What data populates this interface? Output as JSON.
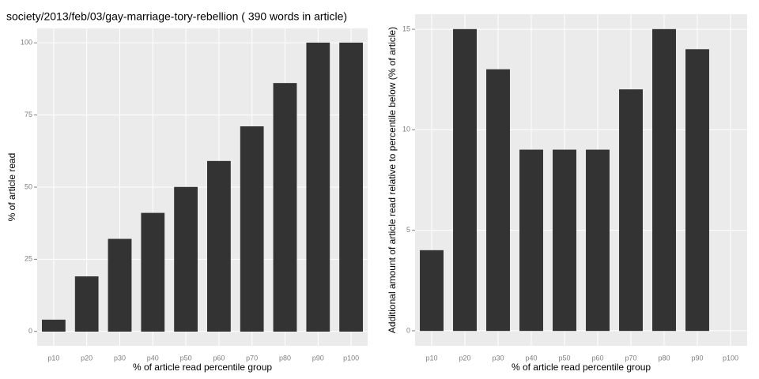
{
  "chart_data": [
    {
      "type": "bar",
      "title": "society/2013/feb/03/gay-marriage-tory-rebellion ( 390 words in article)",
      "x_label": "% of article read percentile group",
      "y_label": "% of article read",
      "categories": [
        "p10",
        "p20",
        "p30",
        "p40",
        "p50",
        "p60",
        "p70",
        "p80",
        "p90",
        "p100"
      ],
      "values": [
        4,
        19,
        32,
        41,
        50,
        59,
        71,
        86,
        100,
        100
      ],
      "color": "#333333",
      "ylim": [
        -5,
        105
      ],
      "yticks": [
        0,
        25,
        50,
        75,
        100
      ],
      "grid": true
    },
    {
      "type": "bar",
      "x_label": "% of article read percentile group",
      "y_label": "Additional amount of article read relative to percentile below (% of article)",
      "categories": [
        "p10",
        "p20",
        "p30",
        "p40",
        "p50",
        "p60",
        "p70",
        "p80",
        "p90",
        "p100"
      ],
      "values": [
        4,
        15,
        13,
        9,
        9,
        9,
        12,
        15,
        14,
        0
      ],
      "color": "#333333",
      "ylim": [
        -0.75,
        15.75
      ],
      "yticks": [
        0,
        5,
        10,
        15
      ],
      "grid": true
    }
  ]
}
